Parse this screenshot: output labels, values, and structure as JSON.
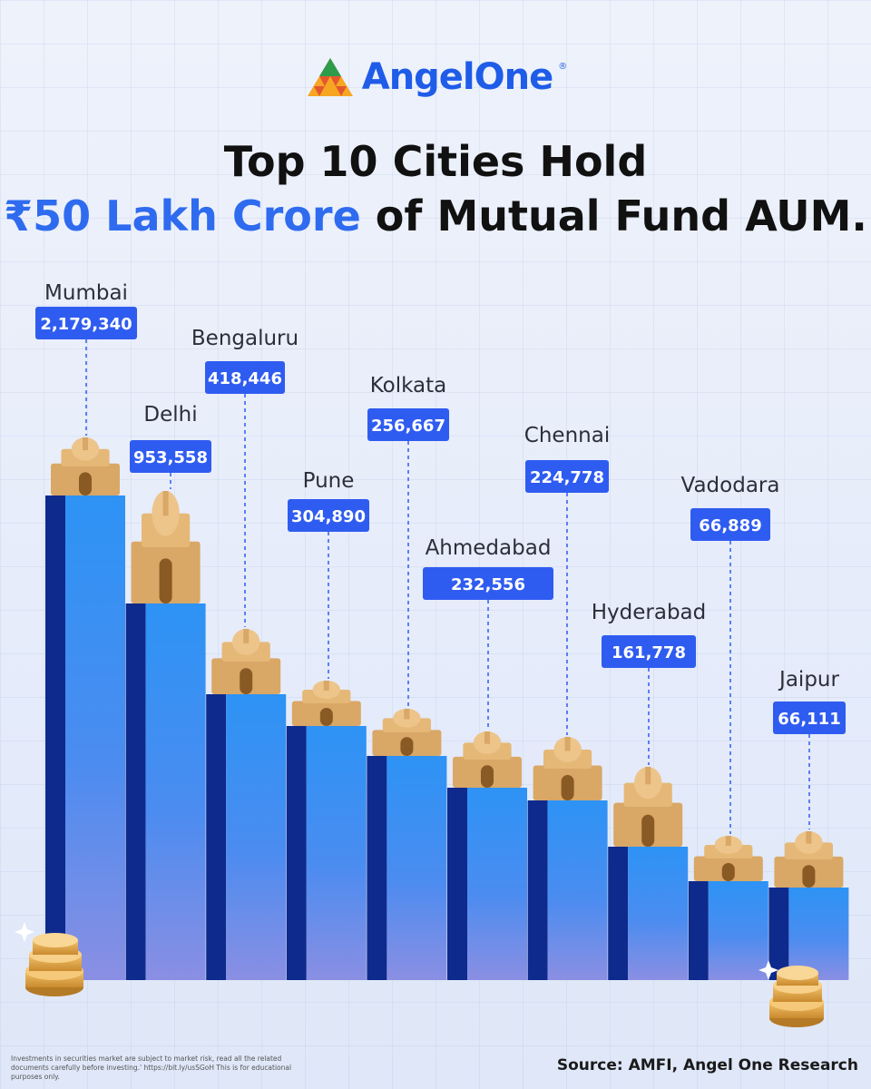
{
  "brand": {
    "logo_text": "AngelOne",
    "logo_mark": "®"
  },
  "title": {
    "line1": "Top 10 Cities Hold",
    "highlight": "₹50 Lakh Crore",
    "line2_rest": " of Mutual Fund AUM."
  },
  "chart_data": {
    "type": "bar",
    "categories": [
      "Mumbai",
      "Delhi",
      "Bengaluru",
      "Pune",
      "Kolkata",
      "Ahmedabad",
      "Chennai",
      "Hyderabad",
      "Vadodara",
      "Jaipur"
    ],
    "values": [
      2179340,
      953558,
      418446,
      304890,
      256667,
      232556,
      224778,
      161778,
      66889,
      66111
    ],
    "value_labels": [
      "2,179,340",
      "953,558",
      "418,446",
      "304,890",
      "256,667",
      "232,556",
      "224,778",
      "161,778",
      "66,889",
      "66,111"
    ],
    "title": "Top 10 Cities Hold ₹50 Lakh Crore of Mutual Fund AUM.",
    "xlabel": "",
    "ylabel": "",
    "colors": {
      "bar_front": "#2f8ef0",
      "bar_side": "#0e2a8c",
      "label_bg": "#2f5cf0",
      "landmark": "#d9a766"
    }
  },
  "footer": {
    "disclaimer": "Investments in securities market are subject to market risk, read all the related documents carefully before investing.' https://bit.ly/usSGoH This is for educational purposes only.",
    "source": "Source: AMFI, Angel One Research"
  }
}
